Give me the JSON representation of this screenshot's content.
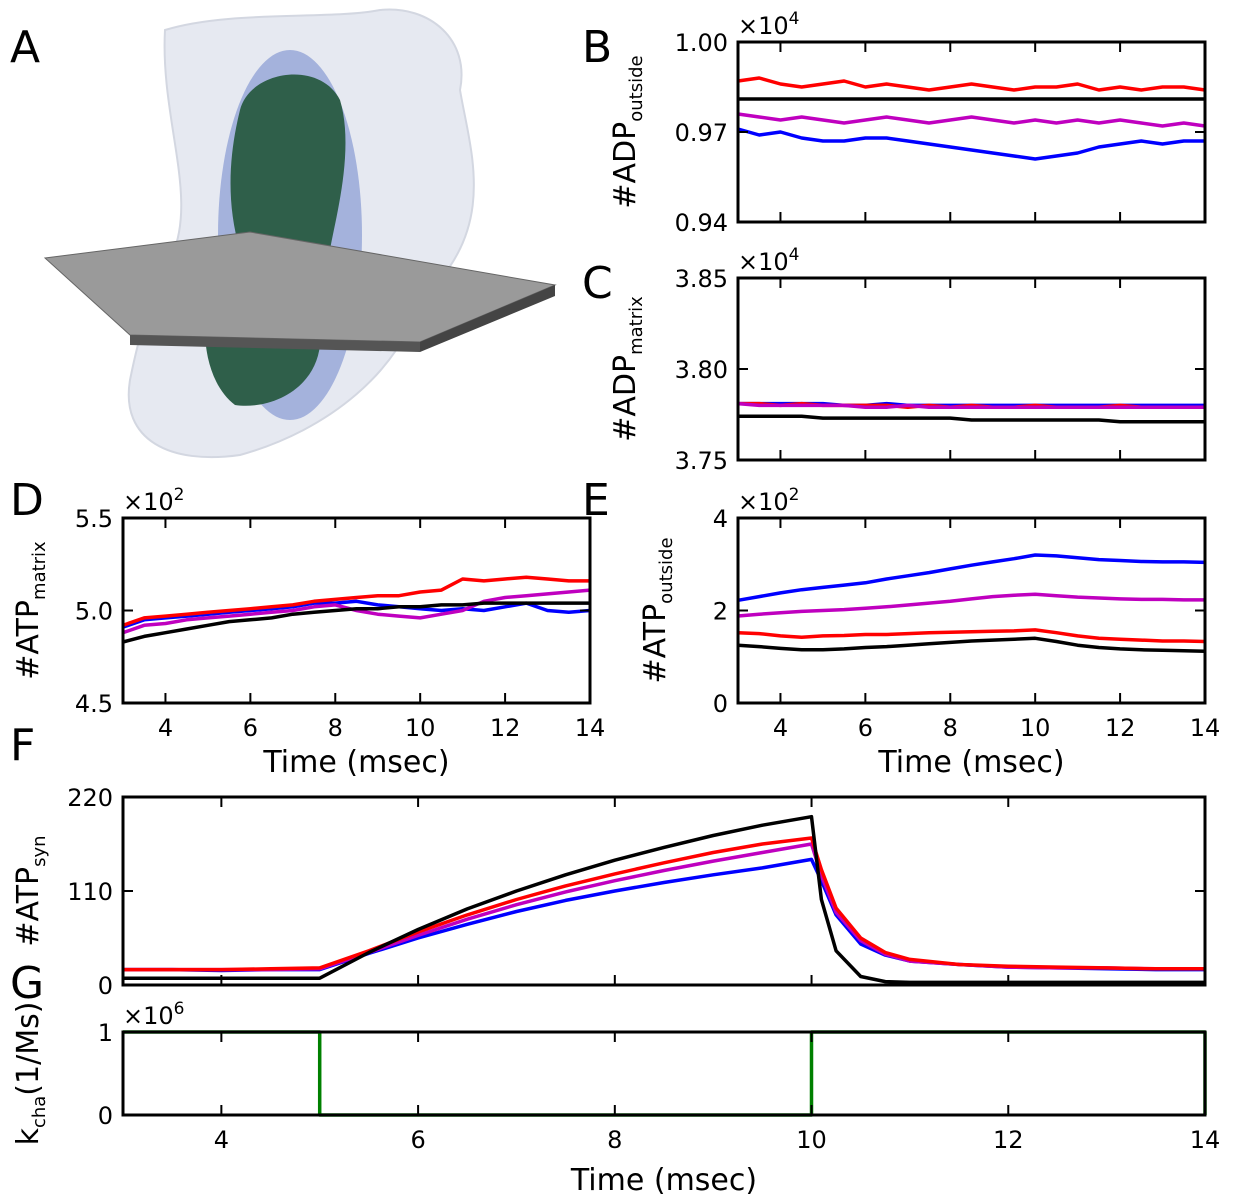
{
  "panel_a": {
    "label": "A"
  },
  "chart_data": [
    {
      "type": "line",
      "label": "B",
      "ylabel": "#ADP",
      "ylabel_sub": "outside",
      "multiplier": "×10",
      "multiplier_exp": "4",
      "xlim": [
        3,
        14
      ],
      "xticks": [
        4,
        6,
        8,
        10,
        12,
        14
      ],
      "xtick_labels": false,
      "ylim": [
        0.94,
        1.0
      ],
      "yticks": [
        0.94,
        0.97,
        {
          "value": 1,
          "label": "1.00"
        }
      ],
      "x": [
        3,
        3.5,
        4,
        4.5,
        5,
        5.5,
        6,
        6.5,
        7,
        7.5,
        8,
        8.5,
        9,
        9.5,
        10,
        10.5,
        11,
        11.5,
        12,
        12.5,
        13,
        13.5,
        14
      ],
      "series": [
        {
          "color": "#ff0000",
          "values": [
            0.987,
            0.988,
            0.986,
            0.985,
            0.986,
            0.987,
            0.985,
            0.986,
            0.985,
            0.984,
            0.985,
            0.986,
            0.985,
            0.984,
            0.985,
            0.985,
            0.986,
            0.984,
            0.985,
            0.984,
            0.985,
            0.985,
            0.984
          ]
        },
        {
          "color": "#0000ff",
          "values": [
            0.971,
            0.969,
            0.97,
            0.968,
            0.967,
            0.967,
            0.968,
            0.968,
            0.967,
            0.966,
            0.965,
            0.964,
            0.963,
            0.962,
            0.961,
            0.962,
            0.963,
            0.965,
            0.966,
            0.967,
            0.966,
            0.967,
            0.967
          ]
        },
        {
          "color": "#bf00bf",
          "values": [
            0.976,
            0.975,
            0.974,
            0.975,
            0.974,
            0.973,
            0.974,
            0.975,
            0.974,
            0.973,
            0.974,
            0.975,
            0.974,
            0.973,
            0.974,
            0.973,
            0.974,
            0.973,
            0.974,
            0.973,
            0.972,
            0.973,
            0.972
          ]
        },
        {
          "color": "#000000",
          "values": [
            0.981,
            0.981,
            0.981,
            0.981,
            0.981,
            0.981,
            0.981,
            0.981,
            0.981,
            0.981,
            0.981,
            0.981,
            0.981,
            0.981,
            0.981,
            0.981,
            0.981,
            0.981,
            0.981,
            0.981,
            0.981,
            0.981,
            0.981
          ]
        }
      ]
    },
    {
      "type": "line",
      "label": "C",
      "ylabel": "#ADP",
      "ylabel_sub": "matrix",
      "multiplier": "×10",
      "multiplier_exp": "4",
      "xlim": [
        3,
        14
      ],
      "xticks": [
        4,
        6,
        8,
        10,
        12,
        14
      ],
      "xtick_labels": false,
      "ylim": [
        3.75,
        3.85
      ],
      "yticks": [
        3.75,
        {
          "value": 3.8,
          "label": "3.80"
        },
        3.85
      ],
      "x": [
        3,
        3.5,
        4,
        4.5,
        5,
        5.5,
        6,
        6.5,
        7,
        7.5,
        8,
        8.5,
        9,
        9.5,
        10,
        10.5,
        11,
        11.5,
        12,
        12.5,
        13,
        13.5,
        14
      ],
      "series": [
        {
          "color": "#0000ff",
          "values": [
            3.781,
            3.781,
            3.781,
            3.781,
            3.781,
            3.78,
            3.78,
            3.781,
            3.78,
            3.78,
            3.78,
            3.78,
            3.78,
            3.78,
            3.78,
            3.78,
            3.78,
            3.78,
            3.78,
            3.78,
            3.78,
            3.78,
            3.78
          ]
        },
        {
          "color": "#ff0000",
          "values": [
            3.781,
            3.781,
            3.78,
            3.781,
            3.78,
            3.78,
            3.78,
            3.78,
            3.779,
            3.78,
            3.779,
            3.78,
            3.779,
            3.779,
            3.78,
            3.779,
            3.779,
            3.779,
            3.78,
            3.779,
            3.779,
            3.779,
            3.779
          ]
        },
        {
          "color": "#bf00bf",
          "values": [
            3.781,
            3.78,
            3.78,
            3.78,
            3.78,
            3.78,
            3.779,
            3.779,
            3.78,
            3.779,
            3.779,
            3.779,
            3.779,
            3.779,
            3.779,
            3.779,
            3.779,
            3.779,
            3.779,
            3.779,
            3.779,
            3.779,
            3.779
          ]
        },
        {
          "color": "#000000",
          "values": [
            3.774,
            3.774,
            3.774,
            3.774,
            3.773,
            3.773,
            3.773,
            3.773,
            3.773,
            3.773,
            3.773,
            3.772,
            3.772,
            3.772,
            3.772,
            3.772,
            3.772,
            3.772,
            3.771,
            3.771,
            3.771,
            3.771,
            3.771
          ]
        }
      ]
    },
    {
      "type": "line",
      "label": "D",
      "ylabel": "#ATP",
      "ylabel_sub": "matrix",
      "multiplier": "×10",
      "multiplier_exp": "2",
      "xlabel": "Time (msec)",
      "xlim": [
        3,
        14
      ],
      "xticks": [
        4,
        6,
        8,
        10,
        12,
        14
      ],
      "xtick_labels": true,
      "ylim": [
        4.5,
        5.5
      ],
      "yticks": [
        4.5,
        {
          "value": 5,
          "label": "5.0"
        },
        5.5
      ],
      "x": [
        3,
        3.5,
        4,
        4.5,
        5,
        5.5,
        6,
        6.5,
        7,
        7.5,
        8,
        8.5,
        9,
        9.5,
        10,
        10.5,
        11,
        11.5,
        12,
        12.5,
        13,
        13.5,
        14
      ],
      "series": [
        {
          "color": "#0000ff",
          "values": [
            4.91,
            4.95,
            4.96,
            4.97,
            4.98,
            4.99,
            5.0,
            5.01,
            5.02,
            5.04,
            5.04,
            5.05,
            5.03,
            5.02,
            5.01,
            5.0,
            5.01,
            5.0,
            5.02,
            5.04,
            5.0,
            4.99,
            5.0
          ]
        },
        {
          "color": "#ff0000",
          "values": [
            4.92,
            4.96,
            4.97,
            4.98,
            4.99,
            5.0,
            5.01,
            5.02,
            5.03,
            5.05,
            5.06,
            5.07,
            5.08,
            5.08,
            5.1,
            5.11,
            5.17,
            5.16,
            5.17,
            5.18,
            5.17,
            5.16,
            5.16
          ]
        },
        {
          "color": "#bf00bf",
          "values": [
            4.88,
            4.92,
            4.93,
            4.95,
            4.96,
            4.97,
            4.98,
            4.99,
            5.0,
            5.02,
            5.03,
            5.0,
            4.98,
            4.97,
            4.96,
            4.98,
            5.0,
            5.05,
            5.07,
            5.08,
            5.09,
            5.1,
            5.11
          ]
        },
        {
          "color": "#000000",
          "values": [
            4.83,
            4.86,
            4.88,
            4.9,
            4.92,
            4.94,
            4.95,
            4.96,
            4.98,
            4.99,
            5.0,
            5.01,
            5.01,
            5.02,
            5.02,
            5.03,
            5.03,
            5.04,
            5.04,
            5.04,
            5.04,
            5.04,
            5.04
          ]
        }
      ]
    },
    {
      "type": "line",
      "label": "E",
      "ylabel": "#ATP",
      "ylabel_sub": "outside",
      "multiplier": "×10",
      "multiplier_exp": "2",
      "xlabel": "Time (msec)",
      "xlim": [
        3,
        14
      ],
      "xticks": [
        4,
        6,
        8,
        10,
        12,
        14
      ],
      "xtick_labels": true,
      "ylim": [
        0,
        4
      ],
      "yticks": [
        0,
        2,
        4
      ],
      "x": [
        3,
        3.5,
        4,
        4.5,
        5,
        5.5,
        6,
        6.5,
        7,
        7.5,
        8,
        8.5,
        9,
        9.5,
        10,
        10.5,
        11,
        11.5,
        12,
        12.5,
        13,
        13.5,
        14
      ],
      "series": [
        {
          "color": "#0000ff",
          "values": [
            2.22,
            2.3,
            2.38,
            2.45,
            2.5,
            2.55,
            2.6,
            2.68,
            2.75,
            2.82,
            2.9,
            2.98,
            3.05,
            3.12,
            3.2,
            3.18,
            3.14,
            3.1,
            3.08,
            3.06,
            3.05,
            3.05,
            3.04
          ]
        },
        {
          "color": "#bf00bf",
          "values": [
            1.88,
            1.92,
            1.95,
            1.98,
            2.0,
            2.02,
            2.05,
            2.08,
            2.12,
            2.16,
            2.2,
            2.25,
            2.3,
            2.33,
            2.35,
            2.32,
            2.29,
            2.27,
            2.25,
            2.24,
            2.24,
            2.23,
            2.23
          ]
        },
        {
          "color": "#ff0000",
          "values": [
            1.52,
            1.5,
            1.45,
            1.42,
            1.45,
            1.46,
            1.48,
            1.48,
            1.5,
            1.52,
            1.53,
            1.54,
            1.55,
            1.56,
            1.58,
            1.52,
            1.45,
            1.4,
            1.38,
            1.36,
            1.34,
            1.34,
            1.33
          ]
        },
        {
          "color": "#000000",
          "values": [
            1.25,
            1.22,
            1.18,
            1.15,
            1.15,
            1.17,
            1.2,
            1.22,
            1.25,
            1.28,
            1.31,
            1.34,
            1.36,
            1.38,
            1.4,
            1.33,
            1.25,
            1.2,
            1.17,
            1.15,
            1.14,
            1.13,
            1.12
          ]
        }
      ]
    },
    {
      "type": "line",
      "label": "F",
      "ylabel": "#ATP",
      "ylabel_sub": "syn",
      "xlim": [
        3,
        14
      ],
      "xticks": [
        4,
        6,
        8,
        10,
        12,
        14
      ],
      "xtick_labels": false,
      "ylim": [
        0,
        220
      ],
      "yticks": [
        0,
        110,
        220
      ],
      "x": [
        3,
        3.5,
        4,
        4.5,
        5,
        5.5,
        6,
        6.5,
        7,
        7.5,
        8,
        8.5,
        9,
        9.5,
        10,
        10.1,
        10.25,
        10.5,
        10.75,
        11,
        11.5,
        12,
        12.5,
        13,
        13.5,
        14
      ],
      "series": [
        {
          "color": "#0000ff",
          "values": [
            18,
            18,
            17,
            18,
            18,
            37,
            55,
            71,
            86,
            99,
            110,
            120,
            129,
            137,
            147,
            122,
            82,
            48,
            35,
            28,
            24,
            21,
            20,
            19,
            18,
            18
          ]
        },
        {
          "color": "#bf00bf",
          "values": [
            18,
            18,
            18,
            18,
            19,
            38,
            58,
            77,
            94,
            109,
            122,
            134,
            145,
            155,
            165,
            128,
            85,
            52,
            36,
            28,
            24,
            21,
            20,
            20,
            19,
            19
          ]
        },
        {
          "color": "#ff0000",
          "values": [
            18,
            18,
            18,
            19,
            20,
            40,
            62,
            82,
            100,
            116,
            130,
            143,
            155,
            165,
            172,
            135,
            90,
            55,
            38,
            30,
            24,
            22,
            21,
            20,
            19,
            19
          ]
        },
        {
          "color": "#000000",
          "values": [
            8,
            8,
            8,
            8,
            8,
            38,
            65,
            89,
            110,
            129,
            146,
            161,
            175,
            187,
            197,
            100,
            40,
            10,
            4,
            3,
            3,
            3,
            3,
            3,
            3,
            3
          ]
        }
      ]
    },
    {
      "type": "line",
      "label": "G",
      "ylabel": "k",
      "ylabel_sub": "cha",
      "ylabel_rest": "(1/Ms)",
      "multiplier": "×10",
      "multiplier_exp": "6",
      "xlabel": "Time (msec)",
      "xlim": [
        3,
        14
      ],
      "xticks": [
        4,
        6,
        8,
        10,
        12,
        14
      ],
      "xtick_labels": true,
      "ylim": [
        0,
        1
      ],
      "yticks": [
        0,
        1
      ],
      "x": [
        3,
        5,
        5,
        10,
        10,
        14,
        14
      ],
      "series": [
        {
          "color": "#008000",
          "values": [
            1,
            1,
            0,
            0,
            1,
            1,
            0
          ]
        }
      ]
    }
  ]
}
